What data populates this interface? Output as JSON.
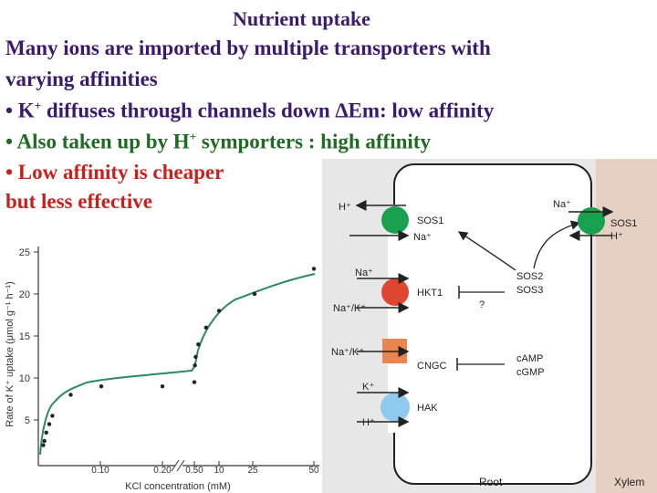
{
  "slide": {
    "title": "Nutrient uptake",
    "intro_line1": "Many ions are imported by multiple transporters with",
    "intro_line2": "varying affinities",
    "bullets": [
      {
        "prefix": "• K",
        "sup": "+",
        "text": " diffuses through channels down ∆Em: low affinity"
      },
      {
        "prefix": "• Also taken up by H",
        "sup": "+",
        "text": " symporters : high affinity"
      },
      {
        "line1": "• Low affinity is cheaper",
        "line2": "but less effective"
      }
    ],
    "colors": {
      "title": "#3b1a6e",
      "green": "#1f6b23",
      "red": "#c8201c"
    }
  },
  "chart_data": {
    "type": "scatter",
    "xlabel": "KCl concentration (mM)",
    "ylabel": "Rate of K⁺ uptake (μmol g⁻¹ h⁻¹)",
    "ylim": [
      0,
      25
    ],
    "y_ticks": [
      "25",
      "20",
      "15",
      "10",
      "5"
    ],
    "x_ticks": [
      "0.10",
      "0.20",
      "0.50",
      "10",
      "25",
      "50"
    ],
    "points": [
      {
        "x": 0.005,
        "y": 2.0
      },
      {
        "x": 0.007,
        "y": 2.5
      },
      {
        "x": 0.01,
        "y": 3.5
      },
      {
        "x": 0.015,
        "y": 4.5
      },
      {
        "x": 0.02,
        "y": 5.5
      },
      {
        "x": 0.05,
        "y": 8.0
      },
      {
        "x": 0.1,
        "y": 9.0
      },
      {
        "x": 0.2,
        "y": 9.0
      },
      {
        "x": 0.5,
        "y": 9.5
      },
      {
        "x": 0.7,
        "y": 11.5
      },
      {
        "x": 1,
        "y": 12.5
      },
      {
        "x": 2,
        "y": 14.0
      },
      {
        "x": 5,
        "y": 16.0
      },
      {
        "x": 10,
        "y": 18.0
      },
      {
        "x": 25,
        "y": 20.0
      },
      {
        "x": 50,
        "y": 23.0
      }
    ]
  },
  "cell_diagram": {
    "root_label": "Root",
    "xylem_label": "Xylem",
    "transporters": [
      {
        "name": "SOS1",
        "in_label": "H⁺",
        "out_label": "Na⁺",
        "color": "#1aa150"
      },
      {
        "name": "HKT1",
        "in_label": "Na⁺",
        "out_label": "Na⁺/K⁺",
        "color": "#e0452f"
      },
      {
        "name": "CNGC",
        "in_label": "Na⁺/K⁺",
        "color": "#e8864e"
      },
      {
        "name": "HAK",
        "in_label": "K⁺",
        "out_label": "H⁺",
        "color": "#8ec9ee"
      }
    ],
    "xylem_transporter": {
      "name": "SOS1",
      "in_label": "Na⁺",
      "out_label": "H⁺",
      "color": "#1aa150"
    },
    "regulators": {
      "sos": [
        "SOS2",
        "SOS3"
      ],
      "question": "?",
      "cyclic": [
        "cAMP",
        "cGMP"
      ]
    }
  }
}
